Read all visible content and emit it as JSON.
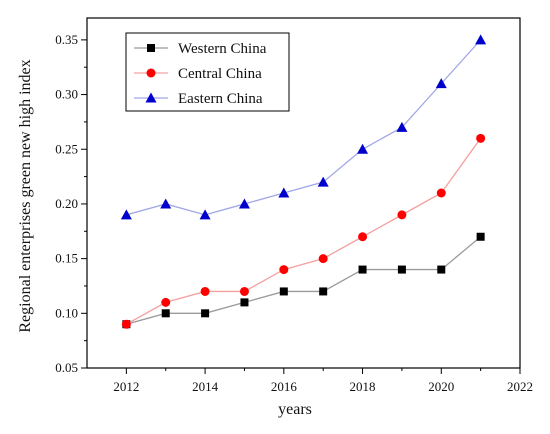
{
  "chart_data": {
    "type": "line",
    "title": "",
    "xlabel": "years",
    "ylabel": "Regional enterprises green new high index",
    "xlim": [
      2011,
      2022
    ],
    "ylim": [
      0.05,
      0.37
    ],
    "x_ticks": [
      2012,
      2014,
      2016,
      2018,
      2020,
      2022
    ],
    "y_ticks": [
      0.05,
      0.1,
      0.15,
      0.2,
      0.25,
      0.3,
      0.35
    ],
    "x_tick_labels": [
      "2012",
      "2014",
      "2016",
      "2018",
      "2020",
      "2022"
    ],
    "y_tick_labels": [
      "0.05",
      "0.10",
      "0.15",
      "0.20",
      "0.25",
      "0.30",
      "0.35"
    ],
    "grid": false,
    "legend_position": "top-left",
    "x": [
      2012,
      2013,
      2014,
      2015,
      2016,
      2017,
      2018,
      2019,
      2020,
      2021
    ],
    "series": [
      {
        "name": "Western China",
        "marker": "square",
        "color": "#000000",
        "line_color": "#9a9a9a",
        "values": [
          0.09,
          0.1,
          0.1,
          0.11,
          0.12,
          0.12,
          0.14,
          0.14,
          0.14,
          0.17
        ]
      },
      {
        "name": "Central China",
        "marker": "circle",
        "color": "#ff0000",
        "line_color": "#f4a0a0",
        "values": [
          0.09,
          0.11,
          0.12,
          0.12,
          0.14,
          0.15,
          0.17,
          0.19,
          0.21,
          0.26
        ]
      },
      {
        "name": "Eastern China",
        "marker": "triangle",
        "color": "#0000cc",
        "line_color": "#a0a6e6",
        "values": [
          0.19,
          0.2,
          0.19,
          0.2,
          0.21,
          0.22,
          0.25,
          0.27,
          0.31,
          0.35
        ]
      }
    ]
  }
}
